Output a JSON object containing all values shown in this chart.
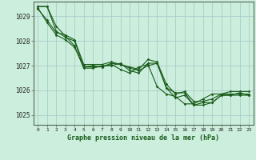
{
  "title": "Graphe pression niveau de la mer (hPa)",
  "bg_color": "#cceedd",
  "grid_color": "#aacccc",
  "line_color": "#1a5c1a",
  "marker_color": "#1a5c1a",
  "xlim": [
    -0.5,
    23.5
  ],
  "ylim": [
    1024.6,
    1029.6
  ],
  "yticks": [
    1025,
    1026,
    1027,
    1028,
    1029
  ],
  "xticks": [
    0,
    1,
    2,
    3,
    4,
    5,
    6,
    7,
    8,
    9,
    10,
    11,
    12,
    13,
    14,
    15,
    16,
    17,
    18,
    19,
    20,
    21,
    22,
    23
  ],
  "series": [
    [
      1029.4,
      1029.4,
      1028.6,
      1028.2,
      1027.8,
      1026.9,
      1026.9,
      1027.0,
      1027.0,
      1027.1,
      1026.8,
      1026.7,
      1027.1,
      1027.1,
      1026.1,
      1025.7,
      1025.8,
      1025.4,
      1025.4,
      1025.5,
      1025.8,
      1025.8,
      1025.8,
      1025.8
    ],
    [
      1029.4,
      1029.4,
      1028.4,
      1028.15,
      1028.0,
      1026.95,
      1027.0,
      1026.95,
      1027.1,
      1027.05,
      1026.9,
      1026.8,
      1027.0,
      1027.1,
      1026.1,
      1025.9,
      1025.9,
      1025.4,
      1025.5,
      1025.5,
      1025.8,
      1025.8,
      1025.9,
      1025.8
    ],
    [
      1029.35,
      1028.75,
      1028.25,
      1028.05,
      1027.75,
      1026.95,
      1026.95,
      1026.95,
      1027.05,
      1026.85,
      1026.7,
      1026.95,
      1027.05,
      1026.15,
      1025.85,
      1025.75,
      1025.45,
      1025.45,
      1025.65,
      1025.85,
      1025.85,
      1025.85,
      1025.85,
      1025.85
    ],
    [
      1029.3,
      1028.85,
      1028.35,
      1028.25,
      1028.05,
      1027.05,
      1027.05,
      1027.05,
      1027.15,
      1027.05,
      1026.95,
      1026.85,
      1027.25,
      1027.15,
      1026.25,
      1025.85,
      1025.95,
      1025.55,
      1025.55,
      1025.65,
      1025.85,
      1025.95,
      1025.95,
      1025.95
    ]
  ]
}
